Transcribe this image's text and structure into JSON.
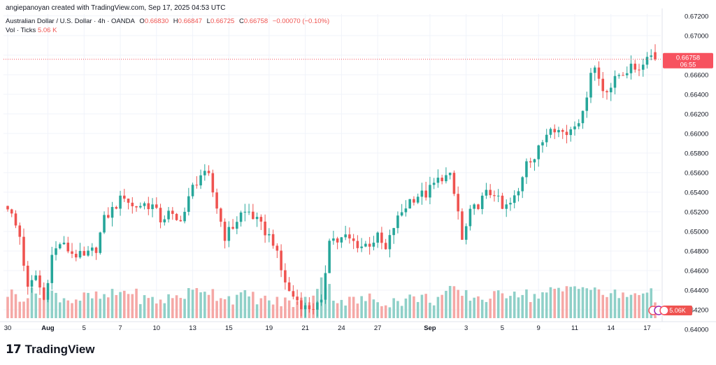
{
  "header": {
    "text": "angiepanoyan created with TradingView.com, Sep 17, 2025 04:53 UTC"
  },
  "legend": {
    "instrument": "Australian Dollar / U.S. Dollar · 4h · OANDA",
    "open_label": "O",
    "open": "0.66830",
    "high_label": "H",
    "high": "0.66847",
    "low_label": "L",
    "low": "0.66725",
    "close_label": "C",
    "close": "0.66758",
    "change": "−0.00070 (−0.10%)",
    "vol_label": "Vol · Ticks",
    "vol_value": "5.06 K"
  },
  "footer": {
    "logo_mark": "17",
    "brand": "TradingView"
  },
  "colors": {
    "up": "#26a69a",
    "down": "#ef5350",
    "up_vol": "#8fd0c8",
    "down_vol": "#f5a8a6",
    "grid": "#f0f3fa",
    "axis_text": "#131722",
    "price_line": "#f7525f"
  },
  "chart_data": {
    "type": "candlestick",
    "title": "Australian Dollar / U.S. Dollar · 4h · OANDA",
    "y_axis": {
      "range": [
        0.641,
        0.6722
      ],
      "ticks": [
        "0.67200",
        "0.67000",
        "0.66800",
        "0.66600",
        "0.66400",
        "0.66200",
        "0.66000",
        "0.65800",
        "0.65600",
        "0.65400",
        "0.65200",
        "0.65000",
        "0.64800",
        "0.64600",
        "0.64400",
        "0.64200",
        "0.64000"
      ]
    },
    "x_axis": {
      "range_index": [
        0,
        161
      ],
      "ticks": [
        {
          "label": "30",
          "index": 0
        },
        {
          "label": "Aug",
          "index": 10
        },
        {
          "label": "5",
          "index": 19
        },
        {
          "label": "7",
          "index": 28
        },
        {
          "label": "10",
          "index": 37
        },
        {
          "label": "13",
          "index": 46
        },
        {
          "label": "15",
          "index": 55
        },
        {
          "label": "19",
          "index": 65
        },
        {
          "label": "21",
          "index": 74
        },
        {
          "label": "24",
          "index": 83
        },
        {
          "label": "27",
          "index": 92
        },
        {
          "label": "Sep",
          "index": 105
        },
        {
          "label": "3",
          "index": 114
        },
        {
          "label": "5",
          "index": 123
        },
        {
          "label": "9",
          "index": 132
        },
        {
          "label": "11",
          "index": 141
        },
        {
          "label": "14",
          "index": 150
        },
        {
          "label": "17",
          "index": 159
        }
      ]
    },
    "last_price": {
      "value": "0.66758",
      "price": 0.66758,
      "countdown": "06:55"
    },
    "volume_badge": "5.06K",
    "close_path": [
      [
        0,
        0.6526
      ],
      [
        3,
        0.6495
      ],
      [
        5,
        0.644
      ],
      [
        7,
        0.6455
      ],
      [
        9,
        0.643
      ],
      [
        11,
        0.6475
      ],
      [
        13,
        0.6488
      ],
      [
        16,
        0.6478
      ],
      [
        19,
        0.6473
      ],
      [
        22,
        0.6483
      ],
      [
        24,
        0.6512
      ],
      [
        26,
        0.6522
      ],
      [
        29,
        0.6537
      ],
      [
        31,
        0.6525
      ],
      [
        34,
        0.6528
      ],
      [
        36,
        0.6526
      ],
      [
        38,
        0.6512
      ],
      [
        40,
        0.6518
      ],
      [
        42,
        0.651
      ],
      [
        44,
        0.652
      ],
      [
        46,
        0.6545
      ],
      [
        48,
        0.6558
      ],
      [
        50,
        0.6555
      ],
      [
        52,
        0.6525
      ],
      [
        54,
        0.6495
      ],
      [
        56,
        0.6505
      ],
      [
        58,
        0.6518
      ],
      [
        60,
        0.652
      ],
      [
        62,
        0.651
      ],
      [
        64,
        0.65
      ],
      [
        66,
        0.649
      ],
      [
        68,
        0.646
      ],
      [
        70,
        0.6438
      ],
      [
        72,
        0.643
      ],
      [
        74,
        0.6422
      ],
      [
        76,
        0.6423
      ],
      [
        78,
        0.6425
      ],
      [
        80,
        0.6495
      ],
      [
        82,
        0.649
      ],
      [
        84,
        0.6494
      ],
      [
        86,
        0.6489
      ],
      [
        88,
        0.6485
      ],
      [
        90,
        0.6488
      ],
      [
        92,
        0.6494
      ],
      [
        94,
        0.648
      ],
      [
        96,
        0.6505
      ],
      [
        98,
        0.652
      ],
      [
        100,
        0.6532
      ],
      [
        102,
        0.6537
      ],
      [
        104,
        0.6538
      ],
      [
        106,
        0.6548
      ],
      [
        108,
        0.6556
      ],
      [
        110,
        0.6555
      ],
      [
        112,
        0.652
      ],
      [
        113,
        0.649
      ],
      [
        115,
        0.6518
      ],
      [
        117,
        0.6528
      ],
      [
        119,
        0.6538
      ],
      [
        121,
        0.654
      ],
      [
        123,
        0.6522
      ],
      [
        125,
        0.6528
      ],
      [
        127,
        0.654
      ],
      [
        129,
        0.6575
      ],
      [
        131,
        0.6575
      ],
      [
        133,
        0.6592
      ],
      [
        135,
        0.661
      ],
      [
        137,
        0.6603
      ],
      [
        139,
        0.66
      ],
      [
        141,
        0.6612
      ],
      [
        143,
        0.6618
      ],
      [
        145,
        0.6665
      ],
      [
        146,
        0.6667
      ],
      [
        148,
        0.6645
      ],
      [
        150,
        0.6648
      ],
      [
        152,
        0.666
      ],
      [
        154,
        0.6665
      ],
      [
        156,
        0.6667
      ],
      [
        158,
        0.667
      ],
      [
        159,
        0.6683
      ],
      [
        161,
        0.66758
      ]
    ],
    "volume_path": [
      [
        0,
        3.0
      ],
      [
        4,
        2.6
      ],
      [
        8,
        3.2
      ],
      [
        12,
        2.8
      ],
      [
        16,
        2.2
      ],
      [
        20,
        2.5
      ],
      [
        24,
        2.4
      ],
      [
        27,
        2.9
      ],
      [
        30,
        3.3
      ],
      [
        34,
        2.2
      ],
      [
        38,
        2.1
      ],
      [
        42,
        2.6
      ],
      [
        46,
        3.1
      ],
      [
        49,
        3.6
      ],
      [
        52,
        2.8
      ],
      [
        56,
        2.4
      ],
      [
        60,
        2.7
      ],
      [
        64,
        2.1
      ],
      [
        68,
        1.9
      ],
      [
        72,
        1.9
      ],
      [
        75,
        2.3
      ],
      [
        78,
        4.8
      ],
      [
        82,
        2.2
      ],
      [
        86,
        2.0
      ],
      [
        90,
        2.3
      ],
      [
        94,
        2.0
      ],
      [
        98,
        2.1
      ],
      [
        102,
        2.5
      ],
      [
        106,
        2.2
      ],
      [
        110,
        3.2
      ],
      [
        114,
        2.7
      ],
      [
        118,
        2.4
      ],
      [
        122,
        2.6
      ],
      [
        126,
        3.4
      ],
      [
        130,
        2.6
      ],
      [
        134,
        3.0
      ],
      [
        138,
        3.3
      ],
      [
        142,
        4.2
      ],
      [
        146,
        3.1
      ],
      [
        150,
        2.8
      ],
      [
        154,
        2.6
      ],
      [
        158,
        3.4
      ],
      [
        161,
        2.5
      ]
    ],
    "volume_axis_max": 7.5
  }
}
